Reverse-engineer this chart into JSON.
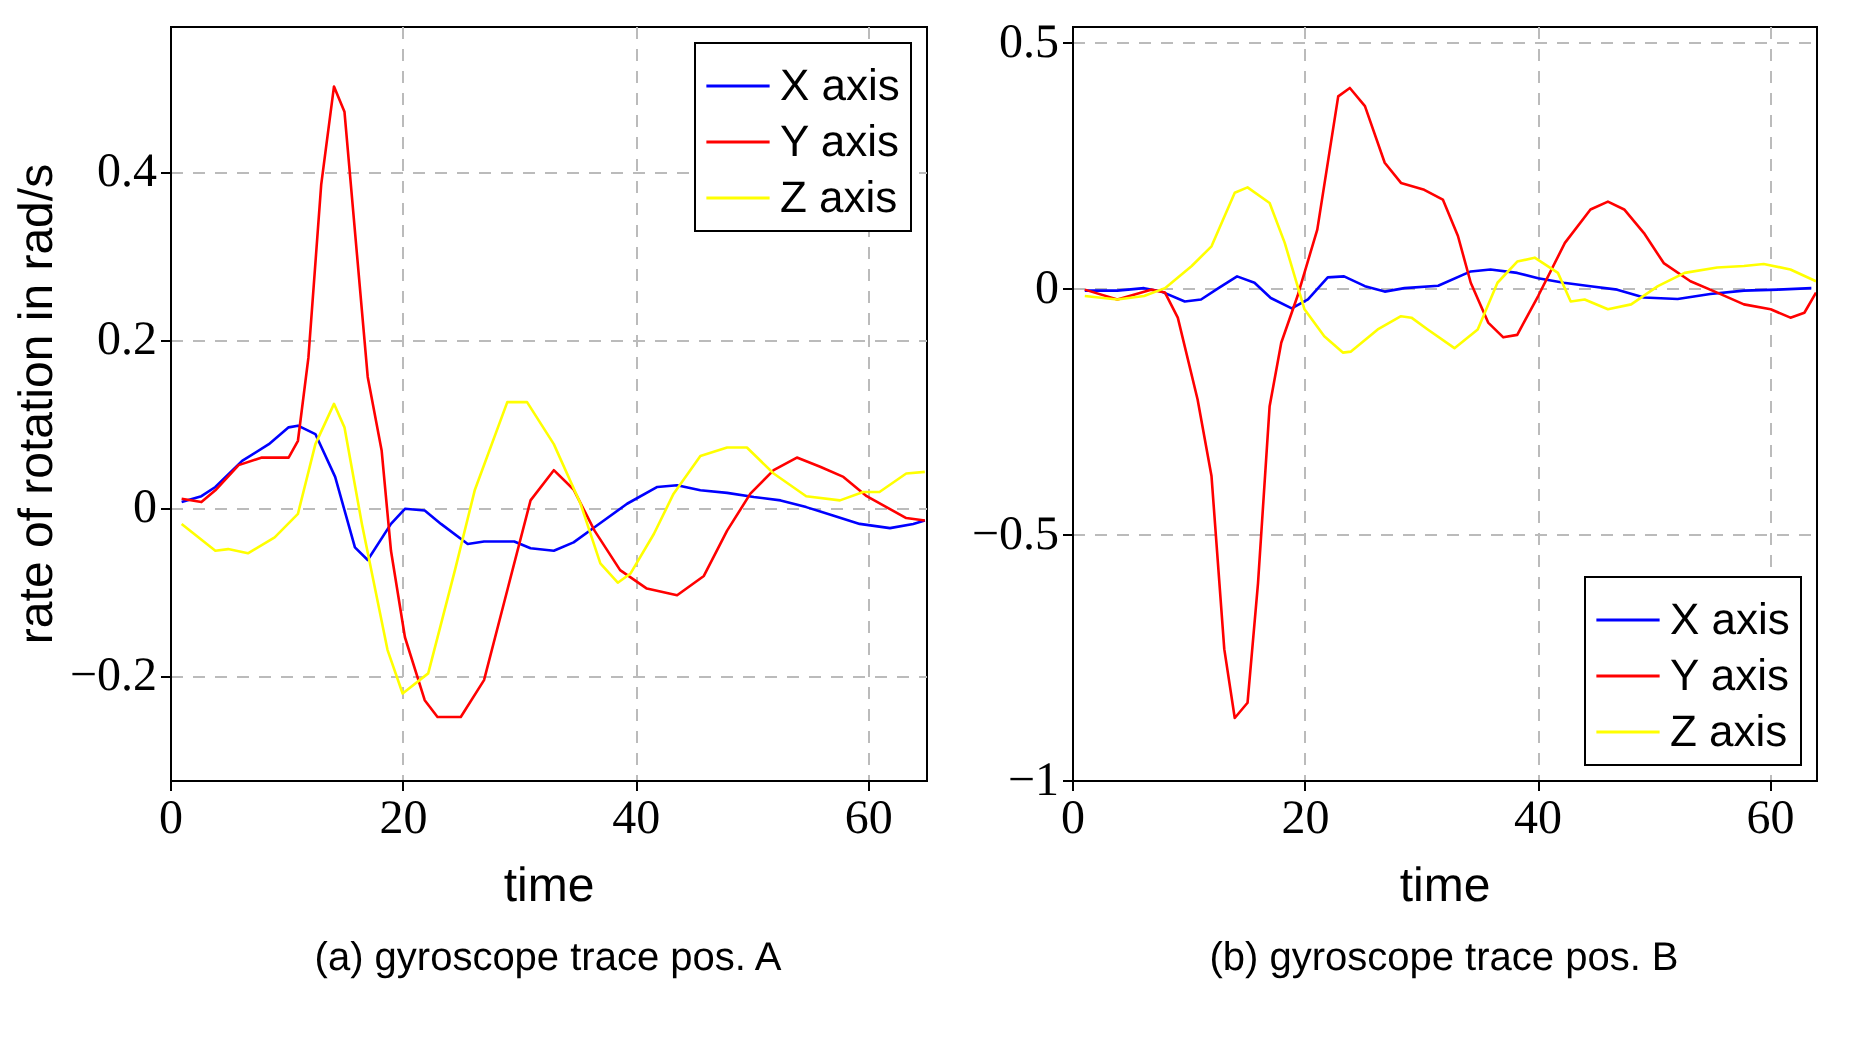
{
  "chart_data": [
    {
      "type": "line",
      "title": "(a) gyroscope trace pos. A",
      "xlabel": "time",
      "ylabel": "rate of rotation in rad/s",
      "xlim": [
        0,
        65
      ],
      "ylim": [
        -0.325,
        0.573
      ],
      "xticks": [
        0,
        20,
        40,
        60
      ],
      "yticks": [
        -0.2,
        0,
        0.2,
        0.4
      ],
      "grid": true,
      "legend": "top right",
      "line_style": "solid",
      "marker": "none",
      "series": [
        {
          "name": "X axis",
          "color": "#0000ff",
          "x": [
            1,
            2.7,
            3.9,
            6.2,
            8.5,
            10.2,
            11,
            12.5,
            14.2,
            15.9,
            17,
            19,
            20.2,
            21.9,
            23.3,
            25.6,
            27,
            29.6,
            31,
            33,
            34.7,
            36.5,
            39.3,
            41.9,
            43.6,
            45.6,
            47.9,
            50.2,
            52.5,
            54.7,
            57,
            59.3,
            61.9,
            63.9,
            64.9
          ],
          "values": [
            0.006,
            0.013,
            0.024,
            0.055,
            0.075,
            0.095,
            0.097,
            0.087,
            0.036,
            -0.048,
            -0.063,
            -0.02,
            -0.002,
            -0.004,
            -0.02,
            -0.044,
            -0.041,
            -0.041,
            -0.049,
            -0.052,
            -0.042,
            -0.024,
            0.004,
            0.024,
            0.026,
            0.02,
            0.017,
            0.012,
            0.008,
            0,
            -0.01,
            -0.02,
            -0.025,
            -0.02,
            -0.016
          ]
        },
        {
          "name": "Y axis",
          "color": "#ff0000",
          "x": [
            1,
            2.7,
            3.9,
            5.9,
            7.9,
            10.2,
            11,
            11.9,
            13,
            14.1,
            15,
            17,
            18.2,
            19,
            20.2,
            21.9,
            23,
            25,
            27,
            29,
            31,
            33,
            34.7,
            36.5,
            38.7,
            41,
            43.6,
            45.9,
            47.9,
            49.9,
            51.9,
            53.9,
            55.9,
            57.9,
            59.9,
            61.6,
            63.3,
            64.9
          ],
          "values": [
            0.01,
            0.006,
            0.02,
            0.05,
            0.059,
            0.059,
            0.079,
            0.178,
            0.384,
            0.501,
            0.471,
            0.155,
            0.067,
            -0.052,
            -0.155,
            -0.23,
            -0.25,
            -0.25,
            -0.206,
            -0.099,
            0.008,
            0.044,
            0.021,
            -0.028,
            -0.075,
            -0.097,
            -0.105,
            -0.082,
            -0.028,
            0.016,
            0.044,
            0.059,
            0.048,
            0.036,
            0.013,
            0,
            -0.013,
            -0.016
          ]
        },
        {
          "name": "Z axis",
          "color": "#ffff00",
          "x": [
            1,
            3.9,
            5,
            6.7,
            9,
            11,
            12.5,
            14.1,
            15,
            16.5,
            18.7,
            20,
            22.2,
            24.5,
            26.2,
            29,
            30.7,
            33,
            35.3,
            37,
            38.5,
            39.6,
            41.6,
            43.3,
            45.6,
            47.9,
            49.6,
            51.9,
            54.7,
            57.6,
            59.6,
            61,
            63.3,
            64.9
          ],
          "values": [
            -0.02,
            -0.052,
            -0.05,
            -0.055,
            -0.036,
            -0.008,
            0.075,
            0.123,
            0.095,
            -0.02,
            -0.17,
            -0.222,
            -0.198,
            -0.075,
            0.02,
            0.125,
            0.125,
            0.075,
            0.004,
            -0.067,
            -0.09,
            -0.079,
            -0.032,
            0.016,
            0.061,
            0.071,
            0.071,
            0.04,
            0.013,
            0.008,
            0.018,
            0.018,
            0.04,
            0.042
          ]
        }
      ]
    },
    {
      "type": "line",
      "title": "(b) gyroscope trace pos. B",
      "xlabel": "time",
      "xlim": [
        0,
        64
      ],
      "ylim": [
        -1,
        0.533
      ],
      "xticks": [
        0,
        20,
        40,
        60
      ],
      "yticks": [
        -1,
        -0.5,
        0,
        0.5
      ],
      "grid": true,
      "legend": "bottom right",
      "line_style": "solid",
      "marker": "none",
      "series": [
        {
          "name": "X axis",
          "color": "#0000ff",
          "x": [
            1.1,
            3.9,
            6.2,
            7.7,
            9.7,
            11.1,
            12.6,
            14.2,
            15.7,
            17.1,
            18.9,
            20.3,
            22,
            23.4,
            25.2,
            26.9,
            28.6,
            31.5,
            34.3,
            36,
            38.3,
            40.1,
            42.3,
            44.6,
            46.9,
            49.2,
            52.1,
            54.9,
            57.8,
            60.7,
            63.6
          ],
          "values": [
            -0.005,
            -0.005,
            0,
            -0.007,
            -0.027,
            -0.023,
            0,
            0.024,
            0.011,
            -0.02,
            -0.041,
            -0.023,
            0.022,
            0.024,
            0.004,
            -0.007,
            0,
            0.005,
            0.034,
            0.038,
            0.031,
            0.02,
            0.011,
            0.004,
            -0.003,
            -0.019,
            -0.022,
            -0.012,
            -0.005,
            -0.003,
            0
          ]
        },
        {
          "name": "Y axis",
          "color": "#ff0000",
          "x": [
            1.1,
            3.9,
            6.8,
            8,
            9.1,
            10.8,
            12,
            13.1,
            14,
            15.1,
            16,
            17,
            18,
            19.4,
            21.1,
            22.9,
            23.9,
            25.2,
            26.9,
            28.3,
            30.3,
            31.9,
            33.2,
            34.3,
            35.8,
            37.1,
            38.3,
            40.1,
            42.4,
            44.6,
            46.1,
            47.5,
            49.2,
            50.9,
            53.2,
            55.5,
            57.8,
            60.1,
            61.8,
            63,
            64
          ],
          "values": [
            -0.003,
            -0.023,
            -0.003,
            -0.009,
            -0.06,
            -0.226,
            -0.382,
            -0.734,
            -0.874,
            -0.843,
            -0.6,
            -0.24,
            -0.111,
            -0.016,
            0.119,
            0.39,
            0.407,
            0.37,
            0.255,
            0.214,
            0.2,
            0.18,
            0.106,
            0.011,
            -0.07,
            -0.1,
            -0.095,
            -0.016,
            0.092,
            0.16,
            0.176,
            0.16,
            0.112,
            0.051,
            0.014,
            -0.009,
            -0.033,
            -0.043,
            -0.06,
            -0.05,
            -0.009
          ]
        },
        {
          "name": "Z axis",
          "color": "#ffff00",
          "x": [
            1.1,
            3.9,
            6.2,
            8,
            10.3,
            12,
            14,
            15.1,
            17,
            18.3,
            20,
            21.7,
            23.3,
            24,
            26.3,
            28.3,
            29.2,
            30.6,
            32.9,
            34.9,
            36.6,
            38.3,
            39.8,
            41.8,
            42.9,
            44.1,
            46.1,
            48.1,
            50.4,
            52.7,
            55.5,
            57.8,
            59.5,
            61.8,
            64
          ],
          "values": [
            -0.016,
            -0.023,
            -0.016,
            0,
            0.045,
            0.085,
            0.194,
            0.205,
            0.173,
            0.092,
            -0.043,
            -0.098,
            -0.131,
            -0.129,
            -0.084,
            -0.057,
            -0.06,
            -0.084,
            -0.122,
            -0.084,
            0.011,
            0.054,
            0.062,
            0.031,
            -0.027,
            -0.023,
            -0.043,
            -0.033,
            0.004,
            0.031,
            0.042,
            0.045,
            0.049,
            0.038,
            0.014
          ]
        }
      ]
    }
  ]
}
